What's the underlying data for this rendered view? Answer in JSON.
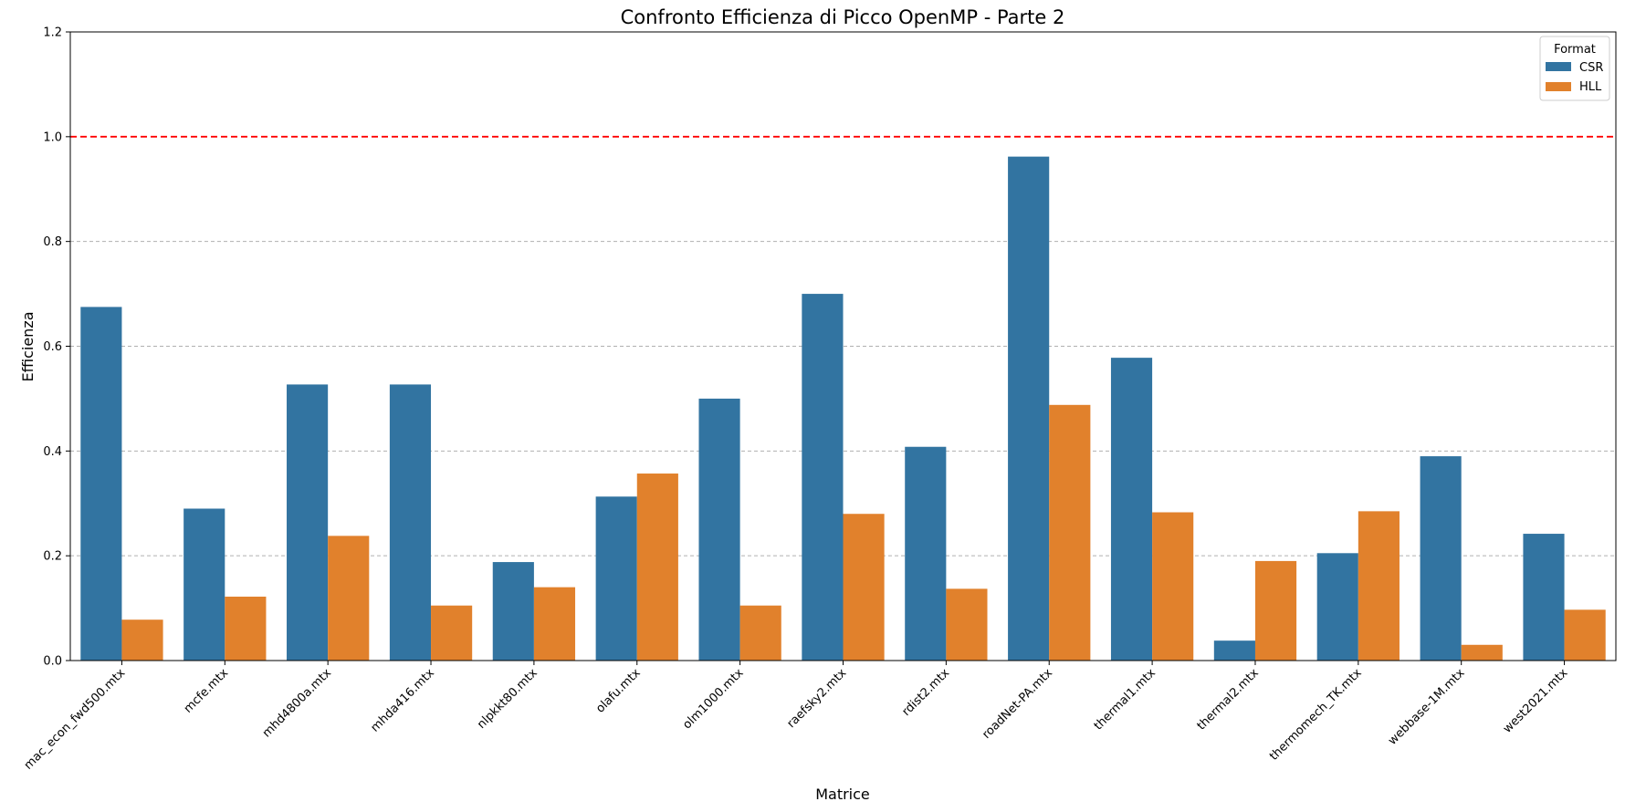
{
  "chart_data": {
    "type": "bar",
    "title": "Confronto Efficienza di Picco OpenMP - Parte 2",
    "xlabel": "Matrice",
    "ylabel": "Efficienza",
    "ylim": [
      0,
      1.2
    ],
    "yticks": [
      "0.0",
      "0.2",
      "0.4",
      "0.6",
      "0.8",
      "1.0",
      "1.2"
    ],
    "grid": "y-dashed",
    "reference_line": {
      "y": 1.0,
      "color": "#ff0000",
      "style": "dashed"
    },
    "categories": [
      "mac_econ_fwd500.mtx",
      "mcfe.mtx",
      "mhd4800a.mtx",
      "mhda416.mtx",
      "nlpkkt80.mtx",
      "olafu.mtx",
      "olm1000.mtx",
      "raefsky2.mtx",
      "rdist2.mtx",
      "roadNet-PA.mtx",
      "thermal1.mtx",
      "thermal2.mtx",
      "thermomech_TK.mtx",
      "webbase-1M.mtx",
      "west2021.mtx"
    ],
    "legend": {
      "title": "Format",
      "position": "top-right"
    },
    "series": [
      {
        "name": "CSR",
        "color": "#3274a1",
        "values": [
          0.675,
          0.29,
          0.527,
          0.527,
          0.188,
          0.313,
          0.5,
          0.7,
          0.408,
          0.962,
          0.578,
          0.038,
          0.205,
          0.39,
          0.242
        ]
      },
      {
        "name": "HLL",
        "color": "#e1812c",
        "values": [
          0.078,
          0.122,
          0.238,
          0.105,
          0.14,
          0.357,
          0.105,
          0.28,
          0.137,
          0.488,
          0.283,
          0.19,
          0.285,
          0.03,
          0.097
        ]
      }
    ]
  }
}
